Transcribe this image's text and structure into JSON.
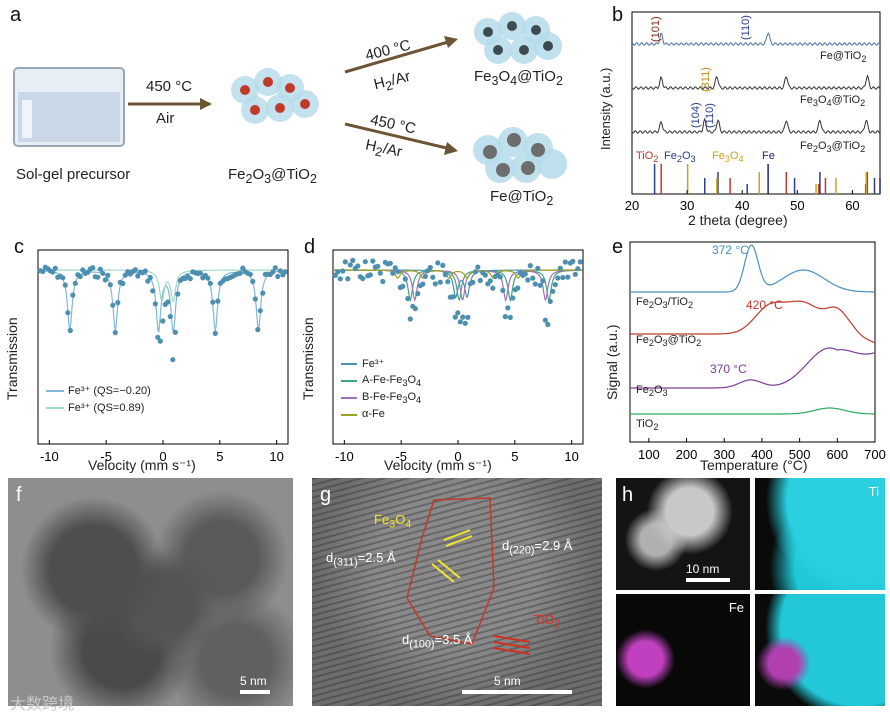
{
  "panels": {
    "a": {
      "label": "a",
      "precursor": "Sol-gel precursor",
      "step1_temp": "450 °C",
      "step1_gas": "Air",
      "intermediate": "Fe2O3@TiO2",
      "step2a_temp": "400 °C",
      "step2a_gas": "H2/Ar",
      "product_a": "Fe3O4@TiO2",
      "step2b_temp": "450 °C",
      "step2b_gas": "H2/Ar",
      "product_b": "Fe@TiO2"
    },
    "b": {
      "label": "b",
      "ylabel": "Intensity (a.u.)",
      "xlabel": "2 theta (degree)",
      "xticks": [
        "20",
        "30",
        "40",
        "50",
        "60"
      ],
      "curve_labels": [
        "Fe@TiO2",
        "Fe3O4@TiO2",
        "Fe2O3@TiO2"
      ],
      "peak_labels": [
        "(101)",
        "(110)",
        "(311)",
        "(104)",
        "(110)"
      ],
      "ref_labels": [
        "TiO2",
        "Fe2O3",
        "Fe3O4",
        "Fe"
      ]
    },
    "c": {
      "label": "c",
      "ylabel": "Transmission",
      "xlabel": "Velocity (mm s⁻¹)",
      "xticks": [
        "-10",
        "-5",
        "0",
        "5",
        "10"
      ],
      "legend": [
        "Fe³⁺ (QS=−0.20)",
        "Fe³⁺ (QS=0.89)"
      ]
    },
    "d": {
      "label": "d",
      "ylabel": "Transmission",
      "xlabel": "Velocity (mm s⁻¹)",
      "xticks": [
        "-10",
        "-5",
        "0",
        "5",
        "10"
      ],
      "legend": [
        "Fe³⁺",
        "A-Fe-Fe3O4",
        "B-Fe-Fe3O4",
        "α-Fe"
      ]
    },
    "e": {
      "label": "e",
      "ylabel": "Signal (a.u.)",
      "xlabel": "Temperature (°C)",
      "xticks": [
        "100",
        "200",
        "300",
        "400",
        "500",
        "600",
        "700"
      ],
      "curve_labels": [
        "Fe2O3/TiO2",
        "Fe2O3@TiO2",
        "Fe2O3",
        "TiO2"
      ],
      "annotations": [
        "372 °C",
        "420 °C",
        "370 °C"
      ]
    },
    "f": {
      "label": "f",
      "scale": "5 nm"
    },
    "g": {
      "label": "g",
      "phase1": "Fe3O4",
      "d311": "d(311)=2.5 Å",
      "d220": "d(220)=2.9 Å",
      "phase2": "TiO2",
      "d100": "d(100)=3.5 Å",
      "scale": "5 nm"
    },
    "h": {
      "label": "h",
      "scale": "10 nm",
      "map_ti": "Ti",
      "map_fe": "Fe"
    }
  },
  "watermark": "大数跨境",
  "colors": {
    "xrd_top": "#4a6fa5",
    "xrd_mid": "#333333",
    "tio2_ref": "#c0392b",
    "fe2o3_ref": "#2c3e8c",
    "fe3o4_ref": "#d4a017",
    "fe_ref": "#1a237e",
    "moss_points": "#4c8fb0",
    "tpr_blue": "#4a90c0",
    "tpr_red": "#c0392b",
    "tpr_purple": "#7d3c98",
    "tpr_green": "#27ae60",
    "ti_map": "#1ec8d8",
    "fe_map": "#c040c0"
  },
  "chart_data": [
    {
      "type": "line",
      "panel": "b",
      "xlabel": "2 theta (degree)",
      "ylabel": "Intensity (a.u.)",
      "xlim": [
        20,
        65
      ],
      "series": [
        {
          "name": "Fe@TiO2",
          "peaks_2theta": [
            25.3,
            44.7
          ]
        },
        {
          "name": "Fe3O4@TiO2",
          "peaks_2theta": [
            25.3,
            35.4,
            48.0,
            62.7
          ]
        },
        {
          "name": "Fe2O3@TiO2",
          "peaks_2theta": [
            25.3,
            33.2,
            35.6,
            48.0,
            54.1,
            62.5
          ]
        }
      ],
      "reference_lines": {
        "TiO2": [
          25.3,
          37.8,
          48.0,
          53.9,
          55.1,
          62.7
        ],
        "Fe2O3": [
          24.1,
          33.2,
          35.6,
          40.9,
          49.5,
          54.1,
          62.4,
          64.0
        ],
        "Fe3O4": [
          30.1,
          35.4,
          43.1,
          53.4,
          57.0,
          62.5
        ],
        "Fe": [
          44.7,
          65.0
        ]
      }
    },
    {
      "type": "scatter",
      "panel": "c",
      "xlabel": "Velocity (mm s⁻¹)",
      "ylabel": "Transmission",
      "xlim": [
        -11,
        11
      ],
      "series": [
        {
          "name": "Fe³⁺ (QS=−0.20)",
          "line_positions": [
            -8.2,
            -4.2,
            -0.4,
            0.9,
            4.6,
            8.4
          ]
        },
        {
          "name": "Fe³⁺ (QS=0.89)",
          "line_positions": [
            -0.1,
            0.9
          ]
        }
      ]
    },
    {
      "type": "scatter",
      "panel": "d",
      "xlabel": "Velocity (mm s⁻¹)",
      "ylabel": "Transmission",
      "xlim": [
        -11,
        11
      ],
      "series": [
        {
          "name": "Fe³⁺",
          "line_positions": [
            -0.2,
            0.8
          ]
        },
        {
          "name": "A-Fe-Fe3O4",
          "line_positions": [
            -4.2,
            0.1,
            4.6,
            8.0
          ]
        },
        {
          "name": "B-Fe-Fe3O4",
          "line_positions": [
            -3.8,
            0.4,
            4.2,
            7.7
          ]
        },
        {
          "name": "α-Fe",
          "line_positions": [
            -5.3,
            -3.1,
            -0.8,
            0.8,
            3.1,
            5.3
          ]
        }
      ]
    },
    {
      "type": "line",
      "panel": "e",
      "xlabel": "Temperature (°C)",
      "ylabel": "Signal (a.u.)",
      "xlim": [
        50,
        700
      ],
      "series": [
        {
          "name": "Fe2O3/TiO2",
          "peak_temps": [
            372,
            510
          ]
        },
        {
          "name": "Fe2O3@TiO2",
          "peak_temps": [
            420,
            510,
            600
          ]
        },
        {
          "name": "Fe2O3",
          "peak_temps": [
            370,
            580
          ]
        },
        {
          "name": "TiO2",
          "peak_temps": [
            580
          ]
        }
      ]
    }
  ]
}
